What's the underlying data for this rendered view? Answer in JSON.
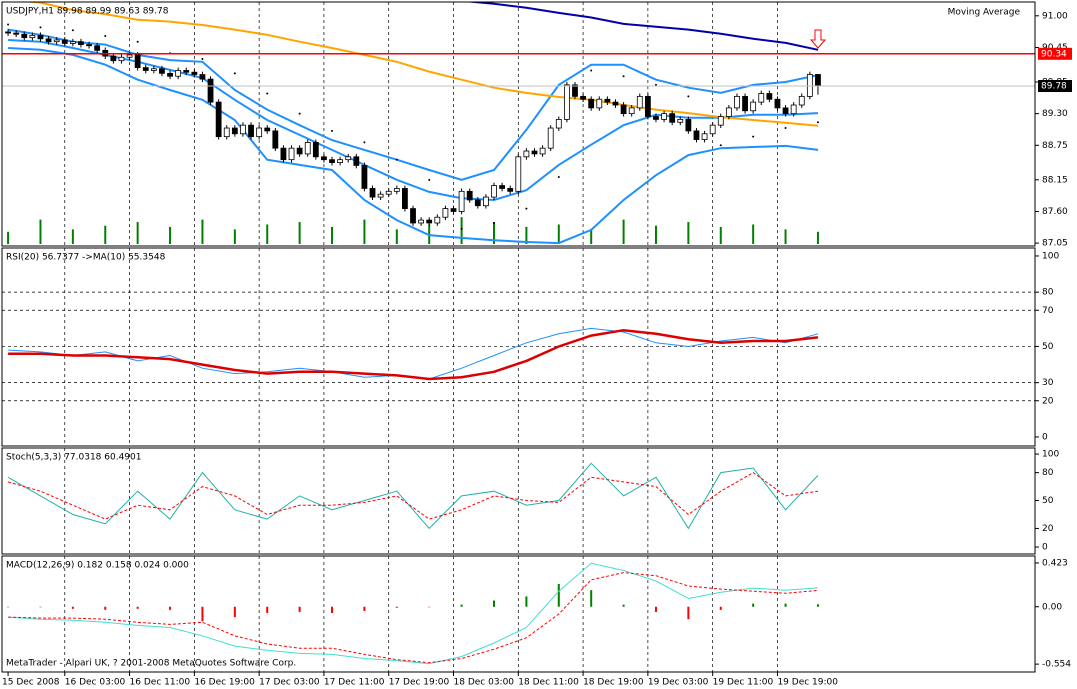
{
  "copyright": "MetaTrader - Alpari UK, ? 2001-2008 MetaQuotes Software Corp.",
  "chart_data": [
    {
      "type": "candlestick",
      "title": "USDJPY,H1  89.98 89.99 89.63 89.78",
      "indicator_label": "Moving Average",
      "up_color": "#ffffff",
      "down_color": "#000000",
      "xgrid": true,
      "xlim": [
        -0.75,
        126.8
      ],
      "xticks": [
        {
          "value": 0,
          "label": "15 Dec 2008"
        },
        {
          "value": 7,
          "label": "16 Dec 03:00"
        },
        {
          "value": 15,
          "label": "16 Dec 11:00"
        },
        {
          "value": 23,
          "label": "16 Dec 19:00"
        },
        {
          "value": 31,
          "label": "17 Dec 03:00"
        },
        {
          "value": 39,
          "label": "17 Dec 11:00"
        },
        {
          "value": 47,
          "label": "17 Dec 19:00"
        },
        {
          "value": 55,
          "label": "18 Dec 03:00"
        },
        {
          "value": 63,
          "label": "18 Dec 11:00"
        },
        {
          "value": 71,
          "label": "18 Dec 19:00"
        },
        {
          "value": 79,
          "label": "19 Dec 03:00"
        },
        {
          "value": 87,
          "label": "19 Dec 11:00"
        },
        {
          "value": 95,
          "label": "19 Dec 19:00"
        }
      ],
      "ylim": [
        87.0,
        91.24
      ],
      "yticks": [
        {
          "value": 91,
          "label": "91.00"
        },
        {
          "value": 90.45,
          "label": "90.45"
        },
        {
          "value": 89.85,
          "label": "89.85"
        },
        {
          "value": 89.3,
          "label": "89.30"
        },
        {
          "value": 88.75,
          "label": "88.75"
        },
        {
          "value": 88.15,
          "label": "88.15"
        },
        {
          "value": 87.6,
          "label": "87.60"
        },
        {
          "value": 87.05,
          "label": "87.05"
        }
      ],
      "x": [
        0,
        1,
        2,
        3,
        4,
        5,
        6,
        7,
        8,
        9,
        10,
        11,
        12,
        13,
        14,
        15,
        16,
        17,
        18,
        19,
        20,
        21,
        22,
        23,
        24,
        25,
        26,
        27,
        28,
        29,
        30,
        31,
        32,
        33,
        34,
        35,
        36,
        37,
        38,
        39,
        40,
        41,
        42,
        43,
        44,
        45,
        46,
        47,
        48,
        49,
        50,
        51,
        52,
        53,
        54,
        55,
        56,
        57,
        58,
        59,
        60,
        61,
        62,
        63,
        64,
        65,
        66,
        67,
        68,
        69,
        70,
        71,
        72,
        73,
        74,
        75,
        76,
        77,
        78,
        79,
        80,
        81,
        82,
        83,
        84,
        85,
        86,
        87,
        88,
        89,
        90,
        91,
        92,
        93,
        94,
        95,
        96,
        97,
        98,
        99,
        100
      ],
      "open": [
        90.72,
        90.7,
        90.68,
        90.62,
        90.66,
        90.6,
        90.55,
        90.58,
        90.52,
        90.55,
        90.5,
        90.48,
        90.4,
        90.3,
        90.22,
        90.28,
        90.32,
        90.1,
        90.05,
        90.08,
        90.0,
        89.95,
        90.05,
        90.02,
        89.98,
        89.9,
        89.5,
        88.9,
        89.05,
        88.95,
        89.1,
        88.9,
        89.05,
        89.0,
        88.7,
        88.5,
        88.7,
        88.6,
        88.8,
        88.55,
        88.5,
        88.45,
        88.5,
        88.55,
        88.4,
        88.0,
        87.85,
        87.9,
        87.95,
        88.0,
        87.65,
        87.4,
        87.45,
        87.4,
        87.5,
        87.65,
        87.6,
        87.95,
        87.8,
        87.7,
        87.85,
        88.05,
        88.0,
        87.95,
        88.55,
        88.65,
        88.6,
        88.7,
        89.05,
        89.2,
        89.8,
        89.6,
        89.55,
        89.4,
        89.55,
        89.5,
        89.45,
        89.3,
        89.4,
        89.6,
        89.25,
        89.2,
        89.3,
        89.15,
        89.2,
        89.0,
        88.85,
        88.95,
        89.1,
        89.25,
        89.4,
        89.6,
        89.35,
        89.5,
        89.65,
        89.55,
        89.4,
        89.3,
        89.45,
        89.6,
        89.98
      ],
      "high": [
        90.77,
        90.75,
        90.73,
        90.71,
        90.71,
        90.65,
        90.63,
        90.63,
        90.6,
        90.6,
        90.55,
        90.53,
        90.45,
        90.35,
        90.33,
        90.37,
        90.37,
        90.15,
        90.13,
        90.13,
        90.05,
        90.1,
        90.1,
        90.07,
        90.03,
        89.95,
        89.55,
        89.1,
        89.1,
        89.15,
        89.15,
        89.1,
        89.1,
        89.05,
        88.75,
        88.75,
        88.75,
        88.85,
        88.85,
        88.6,
        88.55,
        88.55,
        88.6,
        88.6,
        88.45,
        88.05,
        87.95,
        88.0,
        88.05,
        88.05,
        87.7,
        87.5,
        87.5,
        87.55,
        87.7,
        87.7,
        88.0,
        88.0,
        87.85,
        87.9,
        88.1,
        88.1,
        88.05,
        88.6,
        88.7,
        88.7,
        88.75,
        89.1,
        89.25,
        89.85,
        89.85,
        89.65,
        89.6,
        89.6,
        89.6,
        89.55,
        89.5,
        89.45,
        89.65,
        89.65,
        89.3,
        89.35,
        89.35,
        89.25,
        89.25,
        89.05,
        89.0,
        89.15,
        89.3,
        89.45,
        89.65,
        89.65,
        89.55,
        89.7,
        89.7,
        89.6,
        89.45,
        89.5,
        89.65,
        90.03,
        89.99
      ],
      "low": [
        90.65,
        90.63,
        90.57,
        90.57,
        90.55,
        90.5,
        90.5,
        90.47,
        90.47,
        90.45,
        90.43,
        90.35,
        90.25,
        90.17,
        90.17,
        90.23,
        90.05,
        90.0,
        90.0,
        89.95,
        89.9,
        89.9,
        89.97,
        89.93,
        89.85,
        89.45,
        88.85,
        88.85,
        88.9,
        88.9,
        88.85,
        88.85,
        88.95,
        88.65,
        88.45,
        88.45,
        88.55,
        88.55,
        88.5,
        88.45,
        88.4,
        88.4,
        88.45,
        88.35,
        87.95,
        87.8,
        87.8,
        87.85,
        87.9,
        87.6,
        87.35,
        87.35,
        87.35,
        87.35,
        87.45,
        87.55,
        87.55,
        87.75,
        87.65,
        87.65,
        87.8,
        87.95,
        87.9,
        87.9,
        88.5,
        88.55,
        88.55,
        88.65,
        89.0,
        89.15,
        89.55,
        89.5,
        89.35,
        89.35,
        89.45,
        89.4,
        89.25,
        89.25,
        89.35,
        89.2,
        89.15,
        89.15,
        89.1,
        89.1,
        88.95,
        88.8,
        88.8,
        88.9,
        89.05,
        89.2,
        89.35,
        89.3,
        89.3,
        89.45,
        89.5,
        89.35,
        89.25,
        89.25,
        89.4,
        89.55,
        89.63
      ],
      "close": [
        90.7,
        90.68,
        90.62,
        90.66,
        90.6,
        90.55,
        90.58,
        90.52,
        90.55,
        90.5,
        90.48,
        90.4,
        90.3,
        90.22,
        90.28,
        90.32,
        90.1,
        90.05,
        90.08,
        90.0,
        89.95,
        90.05,
        90.02,
        89.98,
        89.9,
        89.5,
        88.9,
        89.05,
        88.95,
        89.1,
        88.9,
        89.05,
        89.0,
        88.7,
        88.5,
        88.7,
        88.6,
        88.8,
        88.55,
        88.5,
        88.45,
        88.5,
        88.55,
        88.4,
        88.0,
        87.85,
        87.9,
        87.95,
        88.0,
        87.65,
        87.4,
        87.45,
        87.4,
        87.5,
        87.65,
        87.6,
        87.95,
        87.8,
        87.7,
        87.85,
        88.05,
        88.0,
        87.95,
        88.55,
        88.65,
        88.6,
        88.7,
        89.05,
        89.2,
        89.8,
        89.6,
        89.55,
        89.4,
        89.55,
        89.5,
        89.45,
        89.3,
        89.4,
        89.6,
        89.25,
        89.2,
        89.3,
        89.15,
        89.2,
        89.0,
        88.85,
        88.95,
        89.1,
        89.25,
        89.4,
        89.6,
        89.35,
        89.5,
        89.65,
        89.55,
        89.4,
        89.3,
        89.45,
        89.6,
        89.98,
        89.78
      ],
      "overlay_x": [
        0,
        4,
        8,
        12,
        16,
        20,
        24,
        28,
        32,
        36,
        40,
        44,
        48,
        52,
        56,
        60,
        64,
        68,
        72,
        76,
        80,
        84,
        88,
        92,
        96,
        100
      ],
      "overlays": [
        {
          "color": "#1e90ff",
          "width": 2,
          "values": [
            90.76,
            90.67,
            90.55,
            90.5,
            90.32,
            90.23,
            90.2,
            89.71,
            89.37,
            89.1,
            88.84,
            88.67,
            88.5,
            88.32,
            88.15,
            88.32,
            89.02,
            89.8,
            90.15,
            90.15,
            89.89,
            89.75,
            89.66,
            89.8,
            89.85,
            89.97
          ]
        },
        {
          "color": "#1e90ff",
          "width": 2,
          "values": [
            90.58,
            90.55,
            90.44,
            90.32,
            90.2,
            90.06,
            89.92,
            89.54,
            89.19,
            88.93,
            88.67,
            88.41,
            88.15,
            87.94,
            87.83,
            87.8,
            87.97,
            88.41,
            88.76,
            89.1,
            89.28,
            89.23,
            89.23,
            89.28,
            89.28,
            89.31
          ]
        },
        {
          "color": "#1e90ff",
          "width": 2,
          "values": [
            90.44,
            90.41,
            90.32,
            90.15,
            89.89,
            89.71,
            89.54,
            89.19,
            88.5,
            88.41,
            88.32,
            87.8,
            87.45,
            87.19,
            87.14,
            87.1,
            87.07,
            87.05,
            87.28,
            87.8,
            88.23,
            88.58,
            88.7,
            88.72,
            88.74,
            88.67
          ]
        },
        {
          "color": "#ffa500",
          "width": 2,
          "values": [
            91.28,
            91.23,
            91.1,
            91.03,
            90.93,
            90.9,
            90.84,
            90.76,
            90.67,
            90.55,
            90.44,
            90.32,
            90.2,
            90.03,
            89.89,
            89.75,
            89.66,
            89.59,
            89.54,
            89.45,
            89.37,
            89.31,
            89.24,
            89.19,
            89.14,
            89.09
          ]
        },
        {
          "color": "#0000aa",
          "width": 2,
          "values": [
            null,
            null,
            null,
            null,
            null,
            null,
            null,
            null,
            null,
            null,
            null,
            null,
            null,
            null,
            91.26,
            91.21,
            91.14,
            91.05,
            90.97,
            90.86,
            90.81,
            90.76,
            90.69,
            90.6,
            90.53,
            90.41
          ]
        },
        {
          "color": "#000000",
          "style": "dots",
          "values": [
            90.85,
            90.8,
            90.75,
            90.65,
            90.55,
            90.35,
            90.25,
            90.0,
            89.65,
            89.3,
            89.0,
            88.8,
            88.5,
            88.15,
            87.3,
            87.4,
            87.65,
            88.2,
            90.05,
            89.95,
            89.8,
            89.6,
            88.75,
            88.9,
            89.05,
            89.15
          ]
        }
      ],
      "volume": {
        "color": "#008000",
        "vlim": [
          0,
          200
        ],
        "values": [
          10,
          20,
          12,
          15,
          18,
          14,
          20,
          12,
          16,
          18,
          14,
          20,
          12,
          16,
          22,
          18,
          14,
          16,
          12,
          20,
          15,
          18,
          14,
          16,
          12,
          10
        ]
      },
      "levels": [
        {
          "value": 90.34,
          "label": "90.34",
          "color": "#ff0000"
        },
        {
          "value": 89.78,
          "label": "89.78",
          "color": "#c0c0c0"
        }
      ]
    },
    {
      "type": "line",
      "title": "RSI(20) 56.7377  ->MA(10) 55.3548",
      "xgrid": true,
      "grid": true,
      "ylim": [
        -5,
        104.4
      ],
      "yticks": [
        0,
        20,
        30,
        50,
        70,
        80,
        100
      ],
      "x": [
        0,
        4,
        8,
        12,
        16,
        20,
        24,
        28,
        32,
        36,
        40,
        44,
        48,
        52,
        56,
        60,
        64,
        68,
        72,
        76,
        80,
        84,
        88,
        92,
        96,
        100
      ],
      "lines": [
        {
          "color": "#1e90ff",
          "width": 1,
          "values": [
            48,
            47,
            45,
            47,
            42,
            45,
            38,
            35,
            36,
            38,
            36,
            33,
            34,
            32,
            38,
            45,
            52,
            57,
            60,
            58,
            52,
            50,
            53,
            55,
            52,
            57
          ]
        },
        {
          "color": "#dd0000",
          "width": 2.5,
          "values": [
            46,
            46,
            45,
            45,
            44,
            43,
            40,
            37,
            35,
            36,
            36,
            35,
            34,
            32,
            33,
            36,
            42,
            50,
            56,
            59,
            57,
            54,
            52,
            53,
            53,
            55
          ]
        }
      ]
    },
    {
      "type": "line",
      "title": "Stoch(5,3,3) 77.0318 60.4901",
      "xgrid": true,
      "grid": false,
      "ylim": [
        -7.5,
        106.5
      ],
      "yticks": [
        0,
        20,
        50,
        80,
        100
      ],
      "x": [
        0,
        4,
        8,
        12,
        16,
        20,
        24,
        28,
        32,
        36,
        40,
        44,
        48,
        52,
        56,
        60,
        64,
        68,
        72,
        76,
        80,
        84,
        88,
        92,
        96,
        100
      ],
      "lines": [
        {
          "color": "#20b2aa",
          "width": 1,
          "values": [
            75,
            55,
            35,
            25,
            60,
            30,
            80,
            40,
            30,
            55,
            40,
            50,
            60,
            20,
            55,
            60,
            45,
            50,
            90,
            55,
            75,
            20,
            80,
            85,
            40,
            77
          ]
        },
        {
          "color": "#ff0000",
          "width": 1,
          "dash": true,
          "values": [
            70,
            60,
            45,
            30,
            45,
            40,
            65,
            55,
            35,
            45,
            45,
            48,
            55,
            30,
            40,
            55,
            50,
            48,
            75,
            70,
            65,
            35,
            60,
            80,
            55,
            60
          ]
        }
      ]
    },
    {
      "type": "bar",
      "title": "MACD(12,26,9) 0.182 0.158 0.024 0.000",
      "xgrid": true,
      "grid": false,
      "ylim": [
        -0.63,
        0.49
      ],
      "yticks": [
        {
          "value": 0.423,
          "label": "0.423"
        },
        {
          "value": 0,
          "label": "0.00"
        },
        {
          "value": -0.554,
          "label": "-0.554"
        }
      ],
      "x": [
        0,
        4,
        8,
        12,
        16,
        20,
        24,
        28,
        32,
        36,
        40,
        44,
        48,
        52,
        56,
        60,
        64,
        68,
        72,
        76,
        80,
        84,
        88,
        92,
        96,
        100
      ],
      "pos_color": "#008000",
      "neg_color": "#ff0000",
      "values": [
        0,
        0,
        -0.02,
        -0.03,
        -0.02,
        -0.03,
        -0.14,
        -0.1,
        -0.06,
        -0.05,
        -0.06,
        -0.04,
        -0.01,
        -0.005,
        0.02,
        0.06,
        0.1,
        0.22,
        0.16,
        0.02,
        -0.05,
        -0.12,
        -0.03,
        0.03,
        0.03,
        0.024
      ],
      "lines": [
        {
          "color": "#40e0d0",
          "width": 1,
          "values": [
            -0.1,
            -0.12,
            -0.13,
            -0.15,
            -0.18,
            -0.2,
            -0.28,
            -0.38,
            -0.42,
            -0.45,
            -0.46,
            -0.5,
            -0.52,
            -0.55,
            -0.48,
            -0.35,
            -0.2,
            0.15,
            0.42,
            0.35,
            0.25,
            0.08,
            0.14,
            0.18,
            0.16,
            0.182
          ]
        },
        {
          "color": "#ff0000",
          "width": 1,
          "dash": true,
          "values": [
            -0.1,
            -0.11,
            -0.11,
            -0.12,
            -0.15,
            -0.17,
            -0.15,
            -0.28,
            -0.36,
            -0.4,
            -0.4,
            -0.46,
            -0.51,
            -0.54,
            -0.5,
            -0.41,
            -0.3,
            -0.07,
            0.26,
            0.33,
            0.3,
            0.2,
            0.17,
            0.15,
            0.13,
            0.158
          ]
        }
      ]
    }
  ]
}
